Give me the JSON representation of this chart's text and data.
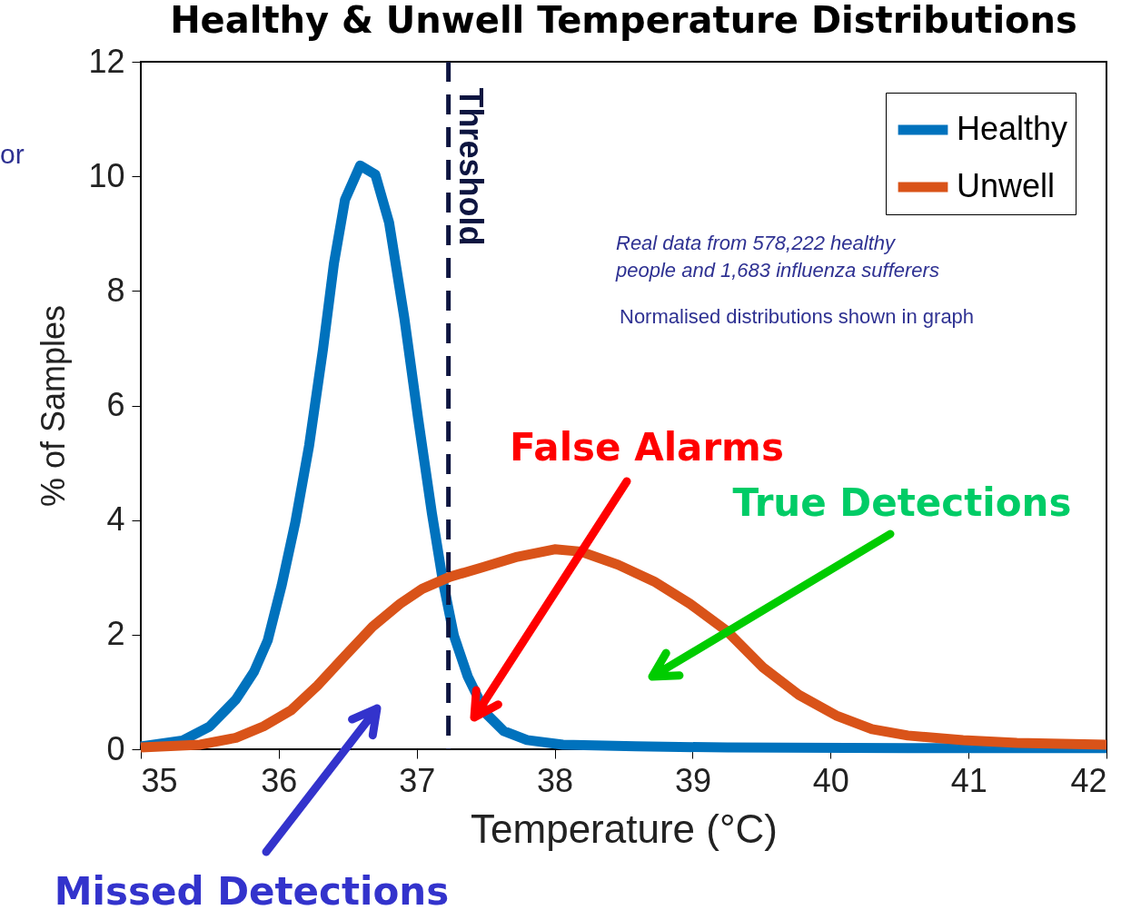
{
  "chart_data": {
    "type": "line",
    "title": "Healthy & Unwell Temperature Distributions",
    "xlabel": "Temperature (°C)",
    "ylabel": "% of Samples",
    "xlim": [
      35,
      42
    ],
    "xticks": [
      35,
      36,
      37,
      38,
      39,
      40,
      41,
      42
    ],
    "ylim": [
      0,
      12
    ],
    "yticks": [
      0,
      2,
      4,
      6,
      8,
      10,
      12
    ],
    "grid": false,
    "legend": "top right",
    "line_style": "solid",
    "series": [
      {
        "name": "Healthy",
        "color": "#0072bd",
        "x": [
          35,
          35.3,
          35.5,
          35.69,
          35.82,
          35.92,
          36.02,
          36.12,
          36.22,
          36.32,
          36.4,
          36.48,
          36.59,
          36.7,
          36.8,
          36.91,
          37.01,
          37.11,
          37.19,
          37.27,
          37.37,
          37.5,
          37.63,
          37.8,
          38.06,
          38.59,
          39.25,
          40.56,
          42
        ],
        "values": [
          0.05,
          0.15,
          0.4,
          0.87,
          1.35,
          1.9,
          2.85,
          3.96,
          5.3,
          6.97,
          8.48,
          9.59,
          10.19,
          10.03,
          9.19,
          7.53,
          5.78,
          4.12,
          2.93,
          1.98,
          1.27,
          0.63,
          0.32,
          0.16,
          0.08,
          0.05,
          0.03,
          0.02,
          0.02
        ]
      },
      {
        "name": "Unwell",
        "color": "#d95319",
        "x": [
          35,
          35.43,
          35.69,
          35.89,
          36.09,
          36.28,
          36.48,
          36.68,
          36.88,
          37.04,
          37.24,
          37.47,
          37.73,
          38,
          38.19,
          38.46,
          38.72,
          38.98,
          39.25,
          39.51,
          39.77,
          40.04,
          40.3,
          40.56,
          40.96,
          41.35,
          42
        ],
        "values": [
          0.03,
          0.08,
          0.2,
          0.4,
          0.68,
          1.11,
          1.63,
          2.14,
          2.54,
          2.8,
          3.01,
          3.17,
          3.36,
          3.49,
          3.45,
          3.22,
          2.93,
          2.54,
          2.06,
          1.43,
          0.95,
          0.59,
          0.35,
          0.24,
          0.16,
          0.11,
          0.08
        ]
      }
    ],
    "ref_lines": [
      {
        "axis": "x",
        "value": 37.23,
        "label": "Threshold",
        "color": "#0d1540",
        "line_style": "dashed"
      }
    ],
    "annotations": [
      "Real data from 578,222 healthy\npeople and 1,683 influenza sufferers",
      "Normalised distributions shown in graph",
      "False Alarms",
      "True Detections",
      "Missed Detections",
      "or"
    ]
  }
}
